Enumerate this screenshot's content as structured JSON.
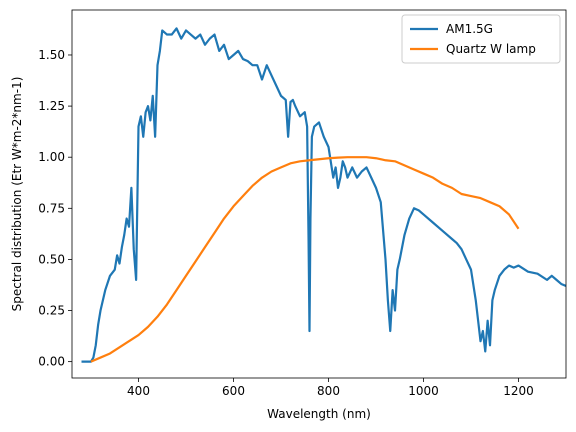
{
  "chart_data": {
    "type": "line",
    "title": "",
    "xlabel": "Wavelength (nm)",
    "ylabel": "Spectral distribution (Etr W*m-2*nm-1)",
    "xlim": [
      260,
      1300
    ],
    "ylim": [
      -0.08,
      1.72
    ],
    "xticks": [
      400,
      600,
      800,
      1000,
      1200
    ],
    "xtick_labels": [
      "400",
      "600",
      "800",
      "1000",
      "1200"
    ],
    "yticks": [
      0.0,
      0.25,
      0.5,
      0.75,
      1.0,
      1.25,
      1.5
    ],
    "ytick_labels": [
      "0.00",
      "0.25",
      "0.50",
      "0.75",
      "1.00",
      "1.25",
      "1.50"
    ],
    "grid": false,
    "legend_position": "top-right",
    "series": [
      {
        "name": "AM1.5G",
        "color": "#1f77b4",
        "x": [
          280,
          300,
          305,
          310,
          315,
          320,
          330,
          340,
          350,
          355,
          360,
          365,
          370,
          375,
          380,
          385,
          390,
          395,
          400,
          405,
          410,
          415,
          420,
          425,
          430,
          435,
          440,
          445,
          450,
          460,
          470,
          480,
          490,
          500,
          510,
          520,
          530,
          540,
          550,
          560,
          570,
          580,
          590,
          600,
          610,
          620,
          630,
          640,
          650,
          660,
          670,
          680,
          690,
          700,
          710,
          715,
          720,
          725,
          730,
          740,
          750,
          755,
          758,
          760,
          762,
          765,
          770,
          780,
          790,
          800,
          810,
          815,
          820,
          825,
          830,
          835,
          840,
          850,
          860,
          870,
          880,
          890,
          900,
          910,
          920,
          925,
          930,
          935,
          940,
          945,
          950,
          960,
          970,
          980,
          990,
          1000,
          1020,
          1040,
          1060,
          1070,
          1080,
          1090,
          1100,
          1110,
          1115,
          1120,
          1125,
          1130,
          1135,
          1140,
          1145,
          1150,
          1160,
          1170,
          1180,
          1190,
          1200,
          1220,
          1240,
          1260,
          1270,
          1280,
          1290,
          1300
        ],
        "values": [
          0.0,
          0.0,
          0.02,
          0.08,
          0.18,
          0.25,
          0.35,
          0.42,
          0.45,
          0.52,
          0.48,
          0.56,
          0.62,
          0.7,
          0.66,
          0.85,
          0.55,
          0.4,
          1.15,
          1.2,
          1.1,
          1.22,
          1.25,
          1.18,
          1.3,
          1.1,
          1.45,
          1.52,
          1.62,
          1.6,
          1.6,
          1.63,
          1.58,
          1.62,
          1.6,
          1.58,
          1.6,
          1.55,
          1.58,
          1.6,
          1.52,
          1.55,
          1.48,
          1.5,
          1.52,
          1.48,
          1.47,
          1.45,
          1.45,
          1.38,
          1.45,
          1.4,
          1.35,
          1.3,
          1.28,
          1.1,
          1.27,
          1.28,
          1.25,
          1.2,
          1.22,
          1.15,
          0.6,
          0.15,
          0.7,
          1.1,
          1.15,
          1.17,
          1.1,
          1.05,
          0.9,
          0.95,
          0.85,
          0.9,
          0.98,
          0.95,
          0.9,
          0.95,
          0.9,
          0.93,
          0.95,
          0.9,
          0.85,
          0.78,
          0.5,
          0.3,
          0.15,
          0.35,
          0.25,
          0.45,
          0.5,
          0.62,
          0.7,
          0.75,
          0.74,
          0.72,
          0.68,
          0.64,
          0.6,
          0.58,
          0.55,
          0.5,
          0.45,
          0.3,
          0.2,
          0.1,
          0.15,
          0.05,
          0.2,
          0.08,
          0.3,
          0.35,
          0.42,
          0.45,
          0.47,
          0.46,
          0.47,
          0.44,
          0.43,
          0.4,
          0.42,
          0.4,
          0.38,
          0.37
        ]
      },
      {
        "name": "Quartz W lamp",
        "color": "#ff7f0e",
        "x": [
          300,
          320,
          340,
          360,
          380,
          400,
          420,
          440,
          460,
          480,
          500,
          520,
          540,
          560,
          580,
          600,
          620,
          640,
          660,
          680,
          700,
          720,
          740,
          760,
          780,
          800,
          820,
          840,
          860,
          880,
          900,
          920,
          940,
          960,
          980,
          1000,
          1020,
          1040,
          1060,
          1080,
          1100,
          1120,
          1140,
          1160,
          1180,
          1200
        ],
        "values": [
          0.0,
          0.02,
          0.04,
          0.07,
          0.1,
          0.13,
          0.17,
          0.22,
          0.28,
          0.35,
          0.42,
          0.49,
          0.56,
          0.63,
          0.7,
          0.76,
          0.81,
          0.86,
          0.9,
          0.93,
          0.95,
          0.97,
          0.98,
          0.985,
          0.99,
          0.995,
          0.998,
          1.0,
          1.0,
          1.0,
          0.995,
          0.985,
          0.98,
          0.96,
          0.94,
          0.92,
          0.9,
          0.87,
          0.85,
          0.82,
          0.81,
          0.8,
          0.78,
          0.76,
          0.72,
          0.65
        ]
      }
    ]
  }
}
